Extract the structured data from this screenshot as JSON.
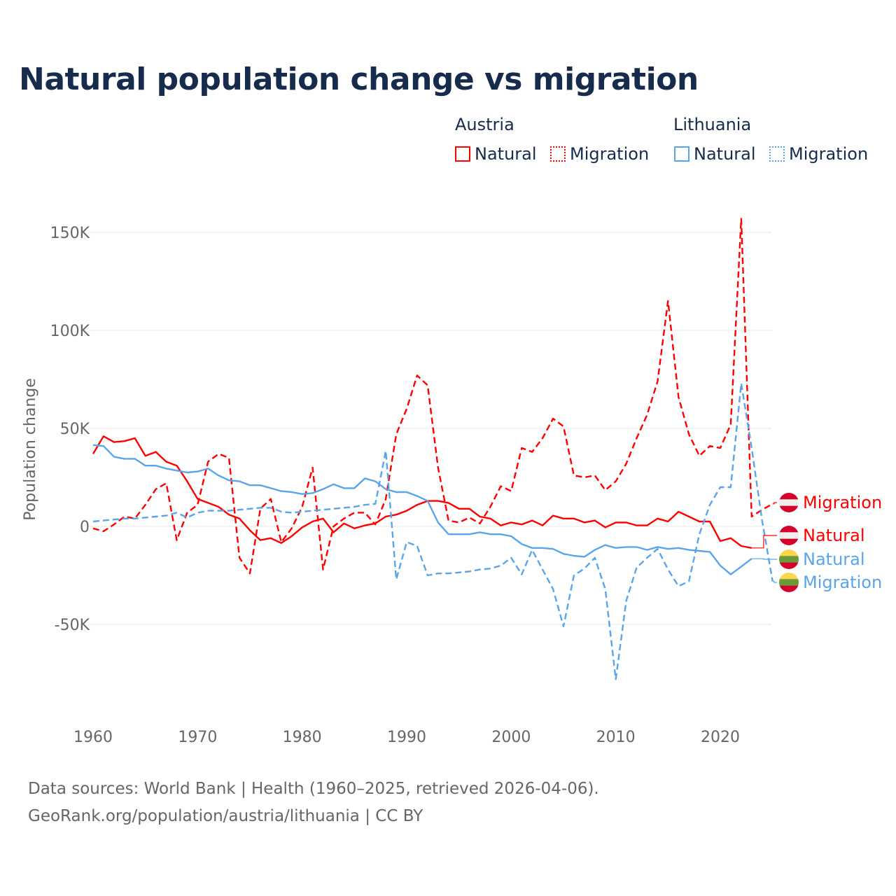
{
  "title": "Natural population change vs migration",
  "legend": {
    "groups": [
      {
        "name": "Austria",
        "color": "#ff0000",
        "items": [
          "Natural",
          "Migration"
        ]
      },
      {
        "name": "Lithuania",
        "color": "#5aa5ea",
        "items": [
          "Natural",
          "Migration"
        ]
      }
    ]
  },
  "footer": {
    "line1": "Data sources: World Bank | Health (1960–2025, retrieved 2026-04-06).",
    "line2": "GeoRank.org/population/austria/lithuania | CC BY"
  },
  "chart_data": {
    "type": "line",
    "title": "Natural population change vs migration",
    "xlabel": "",
    "ylabel": "Population change",
    "xlim": [
      1960,
      2025
    ],
    "ylim": [
      -90000,
      165000
    ],
    "x_ticks": [
      1960,
      1970,
      1980,
      1990,
      2000,
      2010,
      2020
    ],
    "x_tick_labels": [
      "1960",
      "1970",
      "1980",
      "1990",
      "2000",
      "2010",
      "2020"
    ],
    "y_ticks": [
      -50000,
      0,
      50000,
      100000,
      150000
    ],
    "y_tick_labels": [
      "-50K",
      "0",
      "50K",
      "100K",
      "150K"
    ],
    "grid": true,
    "series": [
      {
        "name": "Austria Natural",
        "label": "Natural",
        "country": "Austria",
        "color": "#ff0000",
        "dash": false,
        "start": 1960,
        "values": [
          37,
          46,
          43,
          43.5,
          45,
          36,
          38,
          33,
          31,
          23,
          14,
          12,
          10,
          6,
          4,
          -2,
          -7,
          -6,
          -8.5,
          -5,
          -0.5,
          2.5,
          4,
          -3,
          1.5,
          -1,
          0.5,
          1.5,
          5,
          6,
          8,
          11,
          13,
          13,
          12,
          9,
          9,
          5,
          4,
          0.5,
          2,
          1,
          3,
          0.5,
          5.5,
          4,
          4,
          2,
          3,
          -0.5,
          2,
          2,
          0.5,
          0.5,
          4,
          2.5,
          7.5,
          5,
          2.5,
          2.5,
          -7.5,
          -6,
          -10,
          -11
        ]
      },
      {
        "name": "Austria Migration",
        "label": "Migration",
        "country": "Austria",
        "color": "#ff0000",
        "dash": true,
        "start": 1960,
        "values": [
          -1,
          -2.5,
          1,
          5,
          4,
          11,
          19,
          22,
          -7,
          7,
          11,
          33,
          37,
          35,
          -16,
          -24,
          9,
          14,
          -8,
          -1,
          10,
          30,
          -22,
          0,
          4,
          7,
          7,
          1,
          14,
          47,
          60,
          77,
          72,
          30,
          3,
          2,
          4.5,
          1.5,
          10,
          20.5,
          18,
          40,
          38,
          45,
          55,
          51,
          26,
          25,
          26,
          18.5,
          23,
          32,
          45,
          57,
          74,
          115,
          66,
          47,
          36,
          41,
          40,
          52,
          157,
          5,
          8.5,
          11.5
        ]
      },
      {
        "name": "Lithuania Natural",
        "label": "Natural",
        "country": "Lithuania",
        "color": "#5aa5ea",
        "dash": false,
        "start": 1960,
        "values": [
          41.5,
          41,
          35.5,
          34.5,
          34.5,
          31,
          31,
          29.5,
          28.5,
          27.5,
          28,
          29.5,
          26,
          23.5,
          23,
          21,
          21,
          19.5,
          18,
          17.5,
          16.5,
          17,
          19,
          21.5,
          19.5,
          19.5,
          24.5,
          23,
          19,
          17.5,
          17.5,
          15.5,
          13,
          2,
          -4,
          -4,
          -4,
          -3,
          -4,
          -4,
          -5,
          -9,
          -11,
          -11,
          -11.5,
          -14,
          -15,
          -15.5,
          -12,
          -9.5,
          -11,
          -10.5,
          -10.5,
          -12,
          -10.5,
          -11.5,
          -11,
          -12,
          -12.5,
          -13,
          -20,
          -24.5,
          -20.5,
          -16.5
        ]
      },
      {
        "name": "Lithuania Migration",
        "label": "Migration",
        "country": "Lithuania",
        "color": "#5aa5ea",
        "dash": true,
        "start": 1960,
        "values": [
          2.5,
          3,
          3.5,
          4,
          4,
          4.5,
          5,
          5.5,
          7,
          4.5,
          7,
          8,
          8,
          8,
          8.5,
          9,
          9.5,
          9.5,
          7.5,
          7,
          7.5,
          8,
          8.5,
          9,
          9.5,
          10,
          11,
          11.5,
          38.5,
          -27,
          -8,
          -10,
          -25,
          -24,
          -24,
          -23.5,
          -23,
          -22,
          -21.5,
          -20,
          -16,
          -24.5,
          -12,
          -22,
          -32,
          -51,
          -25,
          -21.5,
          -16,
          -32,
          -78,
          -38,
          -21,
          -16,
          -11.5,
          -22,
          -30.5,
          -28,
          -4,
          11,
          20,
          20,
          73,
          40,
          3,
          -28
        ]
      }
    ],
    "values_unit": "thousands",
    "end_labels": [
      "Migration",
      "Natural",
      "Natural",
      "Migration"
    ]
  }
}
